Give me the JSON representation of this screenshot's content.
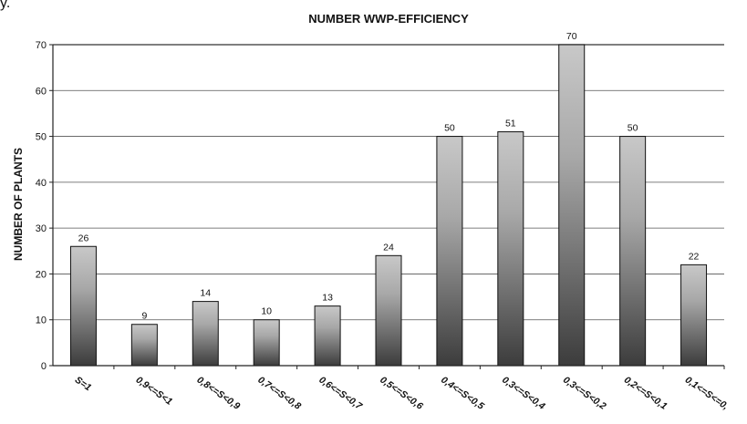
{
  "fragment_text": "y.",
  "chart_data": {
    "type": "bar",
    "title": "NUMBER WWP-EFFICIENCY",
    "xlabel": "",
    "ylabel": "NUMBER OF PLANTS",
    "ylim": [
      0,
      70
    ],
    "yticks": [
      0,
      10,
      20,
      30,
      40,
      50,
      60,
      70
    ],
    "grid": true,
    "categories": [
      "S=1",
      "0,9<=S<1",
      "0,8<=S<0,9",
      "0,7<=S<0,8",
      "0,6<=S<0,7",
      "0,5<=S<0,6",
      "0,4<=S<0,5",
      "0,3<=S<0,4",
      "0,3<=S<0,2",
      "0,2<=S<0,1",
      "0,1<=S<=0,"
    ],
    "values": [
      26,
      9,
      14,
      10,
      13,
      24,
      50,
      51,
      70,
      50,
      22
    ],
    "colors": {
      "bar_top": "#c8c8c8",
      "bar_bottom": "#3c3c3c",
      "grid": "#555555",
      "axis": "#222222"
    }
  }
}
